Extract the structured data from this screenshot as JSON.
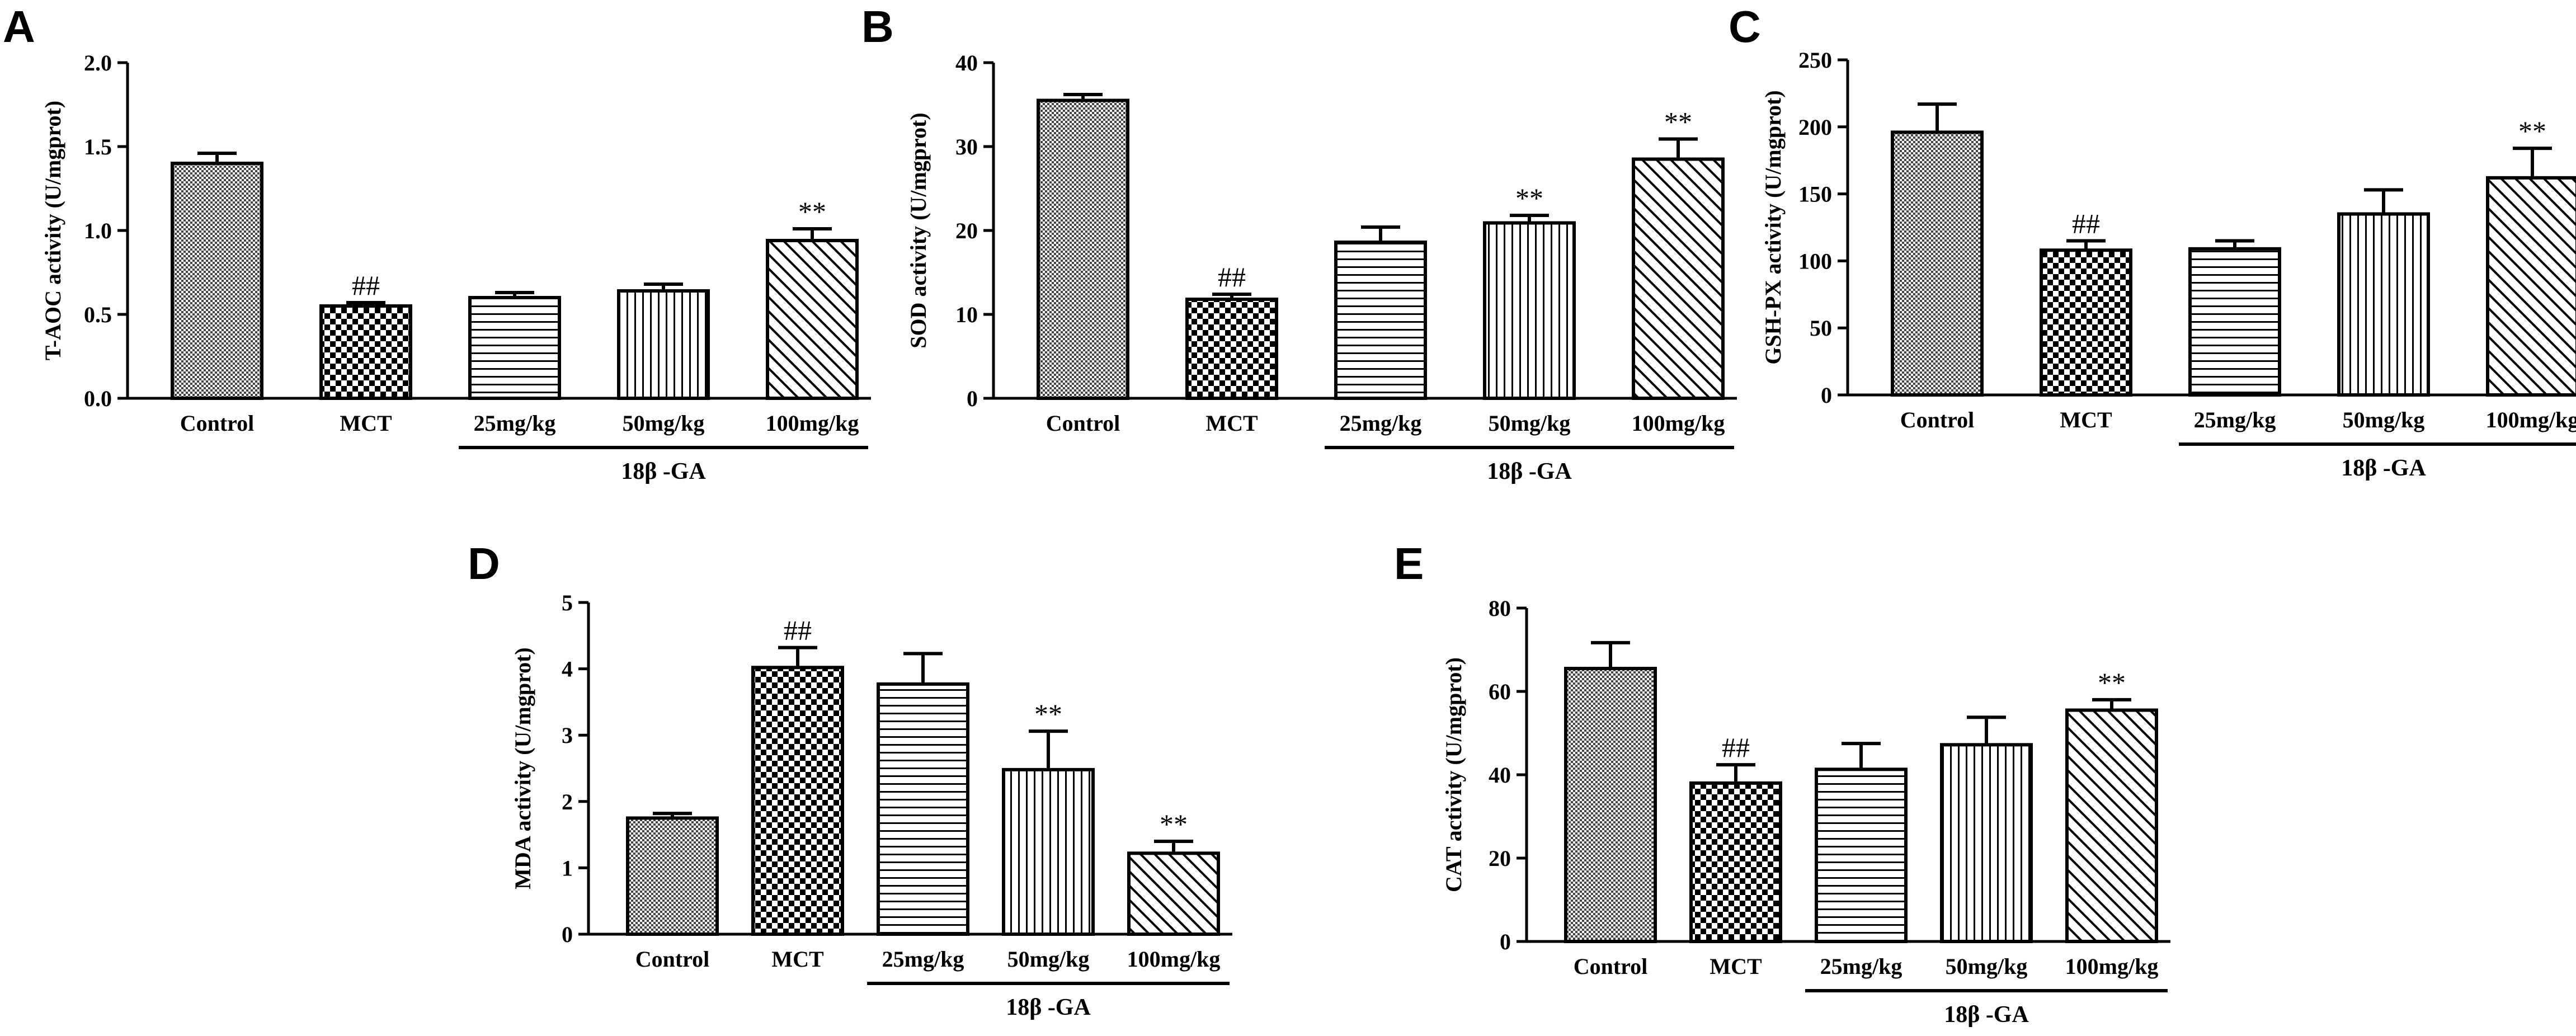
{
  "chart_data": [
    {
      "panel": "A",
      "type": "bar",
      "ylabel": "T-AOC activity (U/mgprot)",
      "categories": [
        "Control",
        "MCT",
        "25mg/kg",
        "50mg/kg",
        "100mg/kg"
      ],
      "values": [
        1.4,
        0.55,
        0.6,
        0.64,
        0.94
      ],
      "errors": [
        0.06,
        0.02,
        0.03,
        0.04,
        0.07
      ],
      "annotations": [
        "",
        "##",
        "",
        "",
        "**"
      ],
      "ylim": [
        0,
        2.0
      ],
      "yticks": [
        "0.0",
        "0.5",
        "1.0",
        "1.5",
        "2.0"
      ],
      "group_label": "18β -GA",
      "patterns": [
        "dense-dots",
        "checker",
        "horizontal",
        "vertical",
        "diagonal"
      ]
    },
    {
      "panel": "B",
      "type": "bar",
      "ylabel": "SOD activity (U/mgprot)",
      "categories": [
        "Control",
        "MCT",
        "25mg/kg",
        "50mg/kg",
        "100mg/kg"
      ],
      "values": [
        35.5,
        11.8,
        18.6,
        20.9,
        28.5
      ],
      "errors": [
        0.7,
        0.6,
        1.8,
        0.9,
        2.4
      ],
      "annotations": [
        "",
        "##",
        "",
        "**",
        "**"
      ],
      "ylim": [
        0,
        40
      ],
      "yticks": [
        "0",
        "10",
        "20",
        "30",
        "40"
      ],
      "group_label": "18β -GA",
      "patterns": [
        "dense-dots",
        "checker",
        "horizontal",
        "vertical",
        "diagonal"
      ]
    },
    {
      "panel": "C",
      "type": "bar",
      "ylabel": "GSH-PX activity (U/mgprot)",
      "categories": [
        "Control",
        "MCT",
        "25mg/kg",
        "50mg/kg",
        "100mg/kg"
      ],
      "values": [
        196,
        108,
        109,
        135,
        162
      ],
      "errors": [
        21,
        7,
        6,
        18,
        22
      ],
      "annotations": [
        "",
        "##",
        "",
        "",
        "**"
      ],
      "ylim": [
        0,
        250
      ],
      "yticks": [
        "0",
        "50",
        "100",
        "150",
        "200",
        "250"
      ],
      "group_label": "18β -GA",
      "patterns": [
        "dense-dots",
        "checker",
        "horizontal",
        "vertical",
        "diagonal"
      ]
    },
    {
      "panel": "D",
      "type": "bar",
      "ylabel": "MDA activity (U/mgprot)",
      "categories": [
        "Control",
        "MCT",
        "25mg/kg",
        "50mg/kg",
        "100mg/kg"
      ],
      "values": [
        1.75,
        4.02,
        3.77,
        2.48,
        1.22
      ],
      "errors": [
        0.07,
        0.3,
        0.46,
        0.58,
        0.18
      ],
      "annotations": [
        "",
        "##",
        "",
        "**",
        "**"
      ],
      "ylim": [
        0,
        5
      ],
      "yticks": [
        "0",
        "1",
        "2",
        "3",
        "4",
        "5"
      ],
      "group_label": "18β -GA",
      "patterns": [
        "dense-dots",
        "checker",
        "horizontal",
        "vertical",
        "diagonal"
      ]
    },
    {
      "panel": "E",
      "type": "bar",
      "ylabel": "CAT activity (U/mgprot)",
      "categories": [
        "Control",
        "MCT",
        "25mg/kg",
        "50mg/kg",
        "100mg/kg"
      ],
      "values": [
        65.5,
        38,
        41.3,
        47.2,
        55.5
      ],
      "errors": [
        6.2,
        4.4,
        6.2,
        6.6,
        2.5
      ],
      "annotations": [
        "",
        "##",
        "",
        "",
        "**"
      ],
      "ylim": [
        0,
        80
      ],
      "yticks": [
        "0",
        "20",
        "40",
        "60",
        "80"
      ],
      "group_label": "18β -GA",
      "patterns": [
        "dense-dots",
        "checker",
        "horizontal",
        "vertical",
        "diagonal"
      ]
    }
  ]
}
